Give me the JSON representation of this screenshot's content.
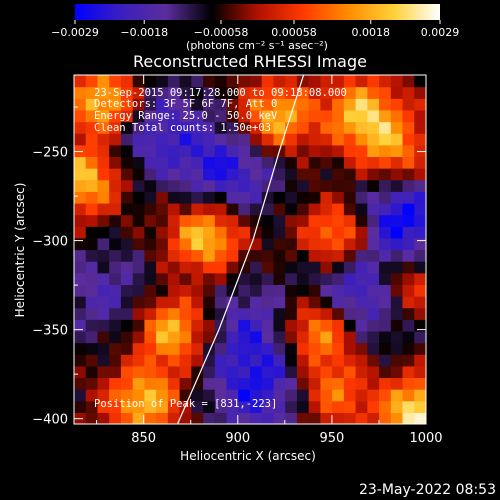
{
  "chart_data": {
    "type": "heatmap",
    "title": "Reconstructed RHESSI Image",
    "xlabel": "Heliocentric X (arcsec)",
    "ylabel": "Heliocentric Y (arcsec)",
    "xlim": [
      813,
      1000
    ],
    "ylim": [
      -403,
      -207
    ],
    "x_ticks": [
      850,
      900,
      950,
      1000
    ],
    "y_ticks": [
      -250,
      -300,
      -350,
      -400
    ],
    "x_tick_labels": [
      "850",
      "900",
      "950",
      "1000"
    ],
    "y_tick_labels": [
      "-250",
      "-300",
      "-350",
      "-400"
    ],
    "colorbar": {
      "min": -0.0029,
      "max": 0.0029,
      "ticks": [
        -0.0029,
        -0.0018,
        -0.00058,
        0.00058,
        0.0018,
        0.0029
      ],
      "tick_labels": [
        "-0.0029",
        "-0.0018",
        "-0.00058",
        "0.00058",
        "0.0018",
        "0.0029"
      ],
      "unit_label": "(photons cm⁻² s⁻¹ asec⁻²)",
      "colormap": [
        "#0000ff",
        "#3a1fbf",
        "#5b2d9c",
        "#000000",
        "#b01000",
        "#ff3a00",
        "#ff8c00",
        "#ffd23a",
        "#ffffff"
      ]
    },
    "annotations": {
      "time": "23-Sep-2015 09:17:28.000 to 09:18:08.000",
      "detectors": "Detectors: 3F 5F 6F 7F, Att 0",
      "energy": "Energy Range: 25.0 - 50.0 keV",
      "clean": "Clean     Total counts: 1.50e+03",
      "peak": "Position of Peak = [831,-223]"
    },
    "limb": [
      {
        "x": 868,
        "y": -403
      },
      {
        "x": 890,
        "y": -350
      },
      {
        "x": 908,
        "y": -300
      },
      {
        "x": 922,
        "y": -250
      },
      {
        "x": 935,
        "y": -207
      }
    ],
    "bright_sources": [
      {
        "x": 831,
        "y": -223,
        "level": 1.0
      },
      {
        "x": 819,
        "y": -265,
        "level": 0.8
      },
      {
        "x": 883,
        "y": -297,
        "level": 0.85
      },
      {
        "x": 920,
        "y": -231,
        "level": 0.8
      },
      {
        "x": 966,
        "y": -228,
        "level": 0.75
      },
      {
        "x": 955,
        "y": -297,
        "level": 0.85
      },
      {
        "x": 983,
        "y": -250,
        "level": 0.6
      },
      {
        "x": 866,
        "y": -350,
        "level": 0.8
      },
      {
        "x": 850,
        "y": -390,
        "level": 0.75
      },
      {
        "x": 943,
        "y": -350,
        "level": 0.85
      },
      {
        "x": 990,
        "y": -323,
        "level": 0.65
      },
      {
        "x": 996,
        "y": -397,
        "level": 0.95
      },
      {
        "x": 950,
        "y": -385,
        "level": 0.55
      }
    ],
    "negative_regions": [
      {
        "x": 985,
        "y": -290,
        "level": -0.95
      },
      {
        "x": 850,
        "y": -235,
        "level": -0.7
      },
      {
        "x": 895,
        "y": -260,
        "level": -0.75
      },
      {
        "x": 906,
        "y": -350,
        "level": -0.55
      },
      {
        "x": 965,
        "y": -330,
        "level": -0.85
      },
      {
        "x": 830,
        "y": -330,
        "level": -0.45
      },
      {
        "x": 912,
        "y": -385,
        "level": -0.65
      }
    ]
  },
  "footer": {
    "timestamp": "23-May-2022 08:53"
  }
}
